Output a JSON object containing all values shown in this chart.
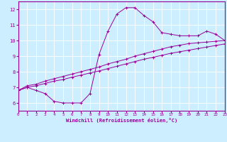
{
  "xlabel": "Windchill (Refroidissement éolien,°C)",
  "xlim": [
    0,
    23
  ],
  "ylim": [
    5.5,
    12.5
  ],
  "xticks": [
    0,
    1,
    2,
    3,
    4,
    5,
    6,
    7,
    8,
    9,
    10,
    11,
    12,
    13,
    14,
    15,
    16,
    17,
    18,
    19,
    20,
    21,
    22,
    23
  ],
  "yticks": [
    6,
    7,
    8,
    9,
    10,
    11,
    12
  ],
  "bg_color": "#cceeff",
  "line_color": "#990099",
  "curve1_x": [
    0,
    1,
    2,
    3,
    4,
    5,
    6,
    7,
    8,
    9,
    10,
    11,
    12,
    13,
    14,
    15,
    16,
    17,
    18,
    19,
    20,
    21,
    22,
    23
  ],
  "curve1_y": [
    6.8,
    7.0,
    6.8,
    6.6,
    6.1,
    6.0,
    6.0,
    6.0,
    6.6,
    9.1,
    10.6,
    11.7,
    12.1,
    12.1,
    11.6,
    11.2,
    10.5,
    10.4,
    10.3,
    10.3,
    10.3,
    10.6,
    10.4,
    10.0
  ],
  "curve2_x": [
    0,
    1,
    2,
    3,
    4,
    5,
    6,
    7,
    8,
    9,
    10,
    11,
    12,
    13,
    14,
    15,
    16,
    17,
    18,
    19,
    20,
    21,
    22,
    23
  ],
  "curve2_y": [
    6.8,
    7.1,
    7.2,
    7.4,
    7.55,
    7.7,
    7.85,
    8.0,
    8.15,
    8.3,
    8.5,
    8.65,
    8.8,
    9.0,
    9.15,
    9.3,
    9.45,
    9.6,
    9.7,
    9.8,
    9.85,
    9.9,
    9.95,
    10.0
  ],
  "curve3_x": [
    0,
    1,
    2,
    3,
    4,
    5,
    6,
    7,
    8,
    9,
    10,
    11,
    12,
    13,
    14,
    15,
    16,
    17,
    18,
    19,
    20,
    21,
    22,
    23
  ],
  "curve3_y": [
    6.8,
    7.0,
    7.1,
    7.25,
    7.4,
    7.5,
    7.65,
    7.78,
    7.92,
    8.05,
    8.2,
    8.35,
    8.5,
    8.65,
    8.8,
    8.92,
    9.05,
    9.18,
    9.28,
    9.38,
    9.48,
    9.58,
    9.68,
    9.78
  ]
}
